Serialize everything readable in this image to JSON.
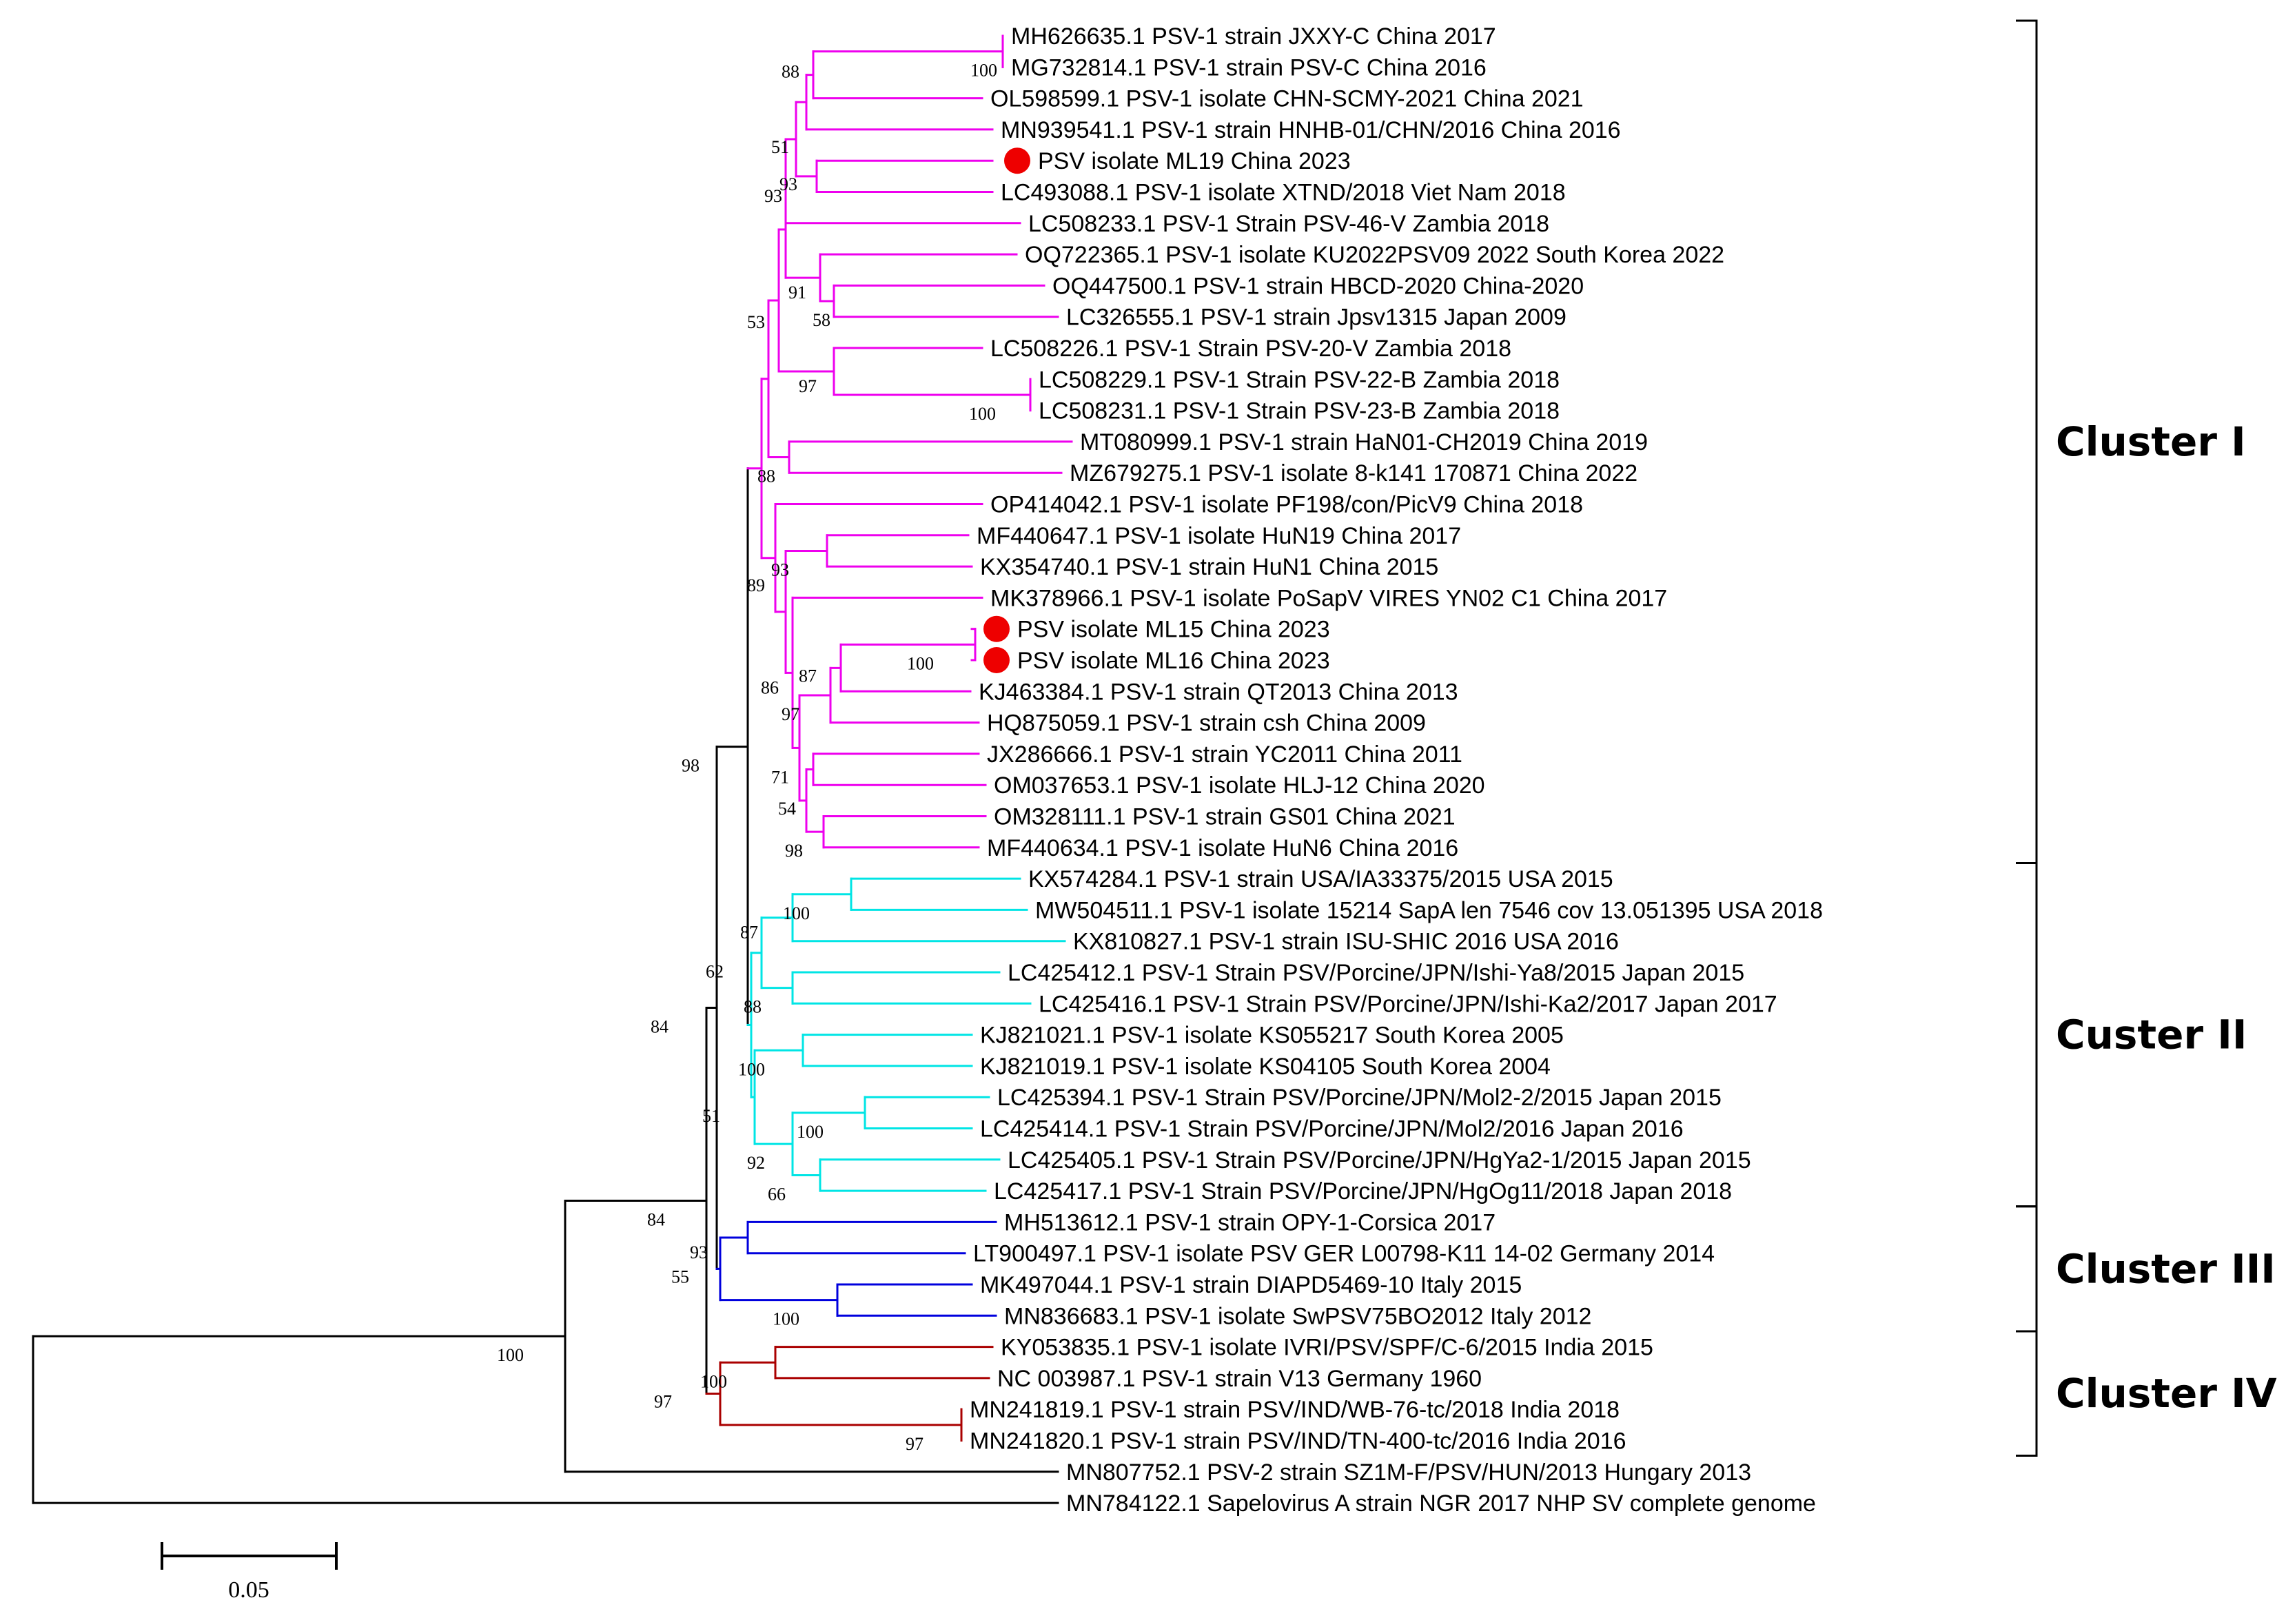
{
  "figure": {
    "title": "",
    "type": "phylogenetic-tree",
    "scale_bar_label": "0.05",
    "colors": {
      "cluster_I": "#ee00ee",
      "cluster_II": "#00e5e5",
      "cluster_III": "#0000dd",
      "cluster_IV": "#aa0000",
      "root": "#000000",
      "highlight_marker": "#ee0000"
    }
  },
  "leaves": [
    {
      "id": 0,
      "label": "MH626635.1 PSV-1 strain JXXY-C China 2017",
      "group": "I",
      "highlight": false
    },
    {
      "id": 1,
      "label": "MG732814.1 PSV-1 strain PSV-C China 2016",
      "group": "I",
      "highlight": false
    },
    {
      "id": 2,
      "label": "OL598599.1 PSV-1 isolate CHN-SCMY-2021 China 2021",
      "group": "I",
      "highlight": false
    },
    {
      "id": 3,
      "label": "MN939541.1 PSV-1 strain HNHB-01/CHN/2016 China 2016",
      "group": "I",
      "highlight": false
    },
    {
      "id": 4,
      "label": "PSV isolate ML19 China 2023",
      "group": "I",
      "highlight": true
    },
    {
      "id": 5,
      "label": "LC493088.1 PSV-1 isolate XTND/2018 Viet Nam 2018",
      "group": "I",
      "highlight": false
    },
    {
      "id": 6,
      "label": "LC508233.1 PSV-1 Strain PSV-46-V Zambia 2018",
      "group": "I",
      "highlight": false
    },
    {
      "id": 7,
      "label": "OQ722365.1 PSV-1 isolate KU2022PSV09 2022 South Korea 2022",
      "group": "I",
      "highlight": false
    },
    {
      "id": 8,
      "label": "OQ447500.1 PSV-1 strain HBCD-2020 China-2020",
      "group": "I",
      "highlight": false
    },
    {
      "id": 9,
      "label": "LC326555.1 PSV-1 strain Jpsv1315 Japan 2009",
      "group": "I",
      "highlight": false
    },
    {
      "id": 10,
      "label": "LC508226.1 PSV-1 Strain PSV-20-V Zambia 2018",
      "group": "I",
      "highlight": false
    },
    {
      "id": 11,
      "label": "LC508229.1 PSV-1 Strain PSV-22-B Zambia 2018",
      "group": "I",
      "highlight": false
    },
    {
      "id": 12,
      "label": "LC508231.1 PSV-1 Strain PSV-23-B Zambia 2018",
      "group": "I",
      "highlight": false
    },
    {
      "id": 13,
      "label": "MT080999.1 PSV-1 strain HaN01-CH2019 China 2019",
      "group": "I",
      "highlight": false
    },
    {
      "id": 14,
      "label": "MZ679275.1 PSV-1 isolate 8-k141 170871 China 2022",
      "group": "I",
      "highlight": false
    },
    {
      "id": 15,
      "label": "OP414042.1 PSV-1 isolate PF198/con/PicV9 China 2018",
      "group": "I",
      "highlight": false
    },
    {
      "id": 16,
      "label": "MF440647.1 PSV-1 isolate HuN19 China 2017",
      "group": "I",
      "highlight": false
    },
    {
      "id": 17,
      "label": "KX354740.1 PSV-1 strain HuN1 China 2015",
      "group": "I",
      "highlight": false
    },
    {
      "id": 18,
      "label": "MK378966.1 PSV-1 isolate PoSapV VIRES YN02 C1 China 2017",
      "group": "I",
      "highlight": false
    },
    {
      "id": 19,
      "label": "PSV isolate ML15 China 2023",
      "group": "I",
      "highlight": true
    },
    {
      "id": 20,
      "label": "PSV isolate ML16 China 2023",
      "group": "I",
      "highlight": true
    },
    {
      "id": 21,
      "label": "KJ463384.1 PSV-1 strain QT2013 China 2013",
      "group": "I",
      "highlight": false
    },
    {
      "id": 22,
      "label": "HQ875059.1 PSV-1 strain csh China 2009",
      "group": "I",
      "highlight": false
    },
    {
      "id": 23,
      "label": "JX286666.1 PSV-1 strain YC2011 China 2011",
      "group": "I",
      "highlight": false
    },
    {
      "id": 24,
      "label": "OM037653.1 PSV-1 isolate HLJ-12 China 2020",
      "group": "I",
      "highlight": false
    },
    {
      "id": 25,
      "label": "OM328111.1 PSV-1 strain GS01 China 2021",
      "group": "I",
      "highlight": false
    },
    {
      "id": 26,
      "label": "MF440634.1 PSV-1 isolate HuN6 China 2016",
      "group": "I",
      "highlight": false
    },
    {
      "id": 27,
      "label": "KX574284.1 PSV-1 strain USA/IA33375/2015 USA 2015",
      "group": "II",
      "highlight": false
    },
    {
      "id": 28,
      "label": "MW504511.1 PSV-1 isolate 15214 SapA len 7546 cov 13.051395 USA 2018",
      "group": "II",
      "highlight": false
    },
    {
      "id": 29,
      "label": "KX810827.1 PSV-1 strain ISU-SHIC 2016 USA 2016",
      "group": "II",
      "highlight": false
    },
    {
      "id": 30,
      "label": "LC425412.1 PSV-1 Strain PSV/Porcine/JPN/Ishi-Ya8/2015 Japan 2015",
      "group": "II",
      "highlight": false
    },
    {
      "id": 31,
      "label": "LC425416.1 PSV-1 Strain PSV/Porcine/JPN/Ishi-Ka2/2017 Japan 2017",
      "group": "II",
      "highlight": false
    },
    {
      "id": 32,
      "label": "KJ821021.1 PSV-1 isolate KS055217 South Korea 2005",
      "group": "II",
      "highlight": false
    },
    {
      "id": 33,
      "label": "KJ821019.1 PSV-1 isolate KS04105 South Korea 2004",
      "group": "II",
      "highlight": false
    },
    {
      "id": 34,
      "label": "LC425394.1 PSV-1 Strain PSV/Porcine/JPN/Mol2-2/2015 Japan 2015",
      "group": "II",
      "highlight": false
    },
    {
      "id": 35,
      "label": "LC425414.1 PSV-1 Strain PSV/Porcine/JPN/Mol2/2016 Japan 2016",
      "group": "II",
      "highlight": false
    },
    {
      "id": 36,
      "label": "LC425405.1 PSV-1 Strain PSV/Porcine/JPN/HgYa2-1/2015 Japan 2015",
      "group": "II",
      "highlight": false
    },
    {
      "id": 37,
      "label": "LC425417.1 PSV-1 Strain PSV/Porcine/JPN/HgOg11/2018 Japan 2018",
      "group": "II",
      "highlight": false
    },
    {
      "id": 38,
      "label": "MH513612.1 PSV-1 strain OPY-1-Corsica 2017",
      "group": "III",
      "highlight": false
    },
    {
      "id": 39,
      "label": "LT900497.1 PSV-1 isolate PSV GER L00798-K11 14-02 Germany 2014",
      "group": "III",
      "highlight": false
    },
    {
      "id": 40,
      "label": "MK497044.1 PSV-1 strain DIAPD5469-10 Italy 2015",
      "group": "III",
      "highlight": false
    },
    {
      "id": 41,
      "label": "MN836683.1 PSV-1 isolate SwPSV75BO2012 Italy 2012",
      "group": "III",
      "highlight": false
    },
    {
      "id": 42,
      "label": "KY053835.1 PSV-1 isolate IVRI/PSV/SPF/C-6/2015 India 2015",
      "group": "IV",
      "highlight": false
    },
    {
      "id": 43,
      "label": "NC 003987.1 PSV-1 strain V13 Germany 1960",
      "group": "IV",
      "highlight": false
    },
    {
      "id": 44,
      "label": "MN241819.1 PSV-1 strain PSV/IND/WB-76-tc/2018 India 2018",
      "group": "IV",
      "highlight": false
    },
    {
      "id": 45,
      "label": "MN241820.1 PSV-1 strain PSV/IND/TN-400-tc/2016 India 2016",
      "group": "IV",
      "highlight": false
    },
    {
      "id": 46,
      "label": "MN807752.1 PSV-2 strain SZ1M-F/PSV/HUN/2013 Hungary 2013",
      "group": "root",
      "highlight": false
    },
    {
      "id": 47,
      "label": "MN784122.1 Sapelovirus A strain NGR 2017 NHP SV complete genome",
      "group": "root",
      "highlight": false
    }
  ],
  "bootstrap_values": [
    "100",
    "88",
    "93",
    "51",
    "93",
    "91",
    "58",
    "97",
    "100",
    "53",
    "88",
    "89",
    "93",
    "86",
    "87",
    "100",
    "97",
    "71",
    "54",
    "98",
    "98",
    "100",
    "87",
    "88",
    "62",
    "100",
    "51",
    "100",
    "92",
    "66",
    "84",
    "100",
    "93",
    "55",
    "100",
    "100",
    "97",
    "100"
  ],
  "clusters": [
    {
      "name": "Cluster I",
      "first_leaf": 0,
      "last_leaf": 26
    },
    {
      "name": "Custer II",
      "first_leaf": 27,
      "last_leaf": 37
    },
    {
      "name": "Cluster III",
      "first_leaf": 38,
      "last_leaf": 41
    },
    {
      "name": "Cluster IV",
      "first_leaf": 42,
      "last_leaf": 45
    }
  ]
}
